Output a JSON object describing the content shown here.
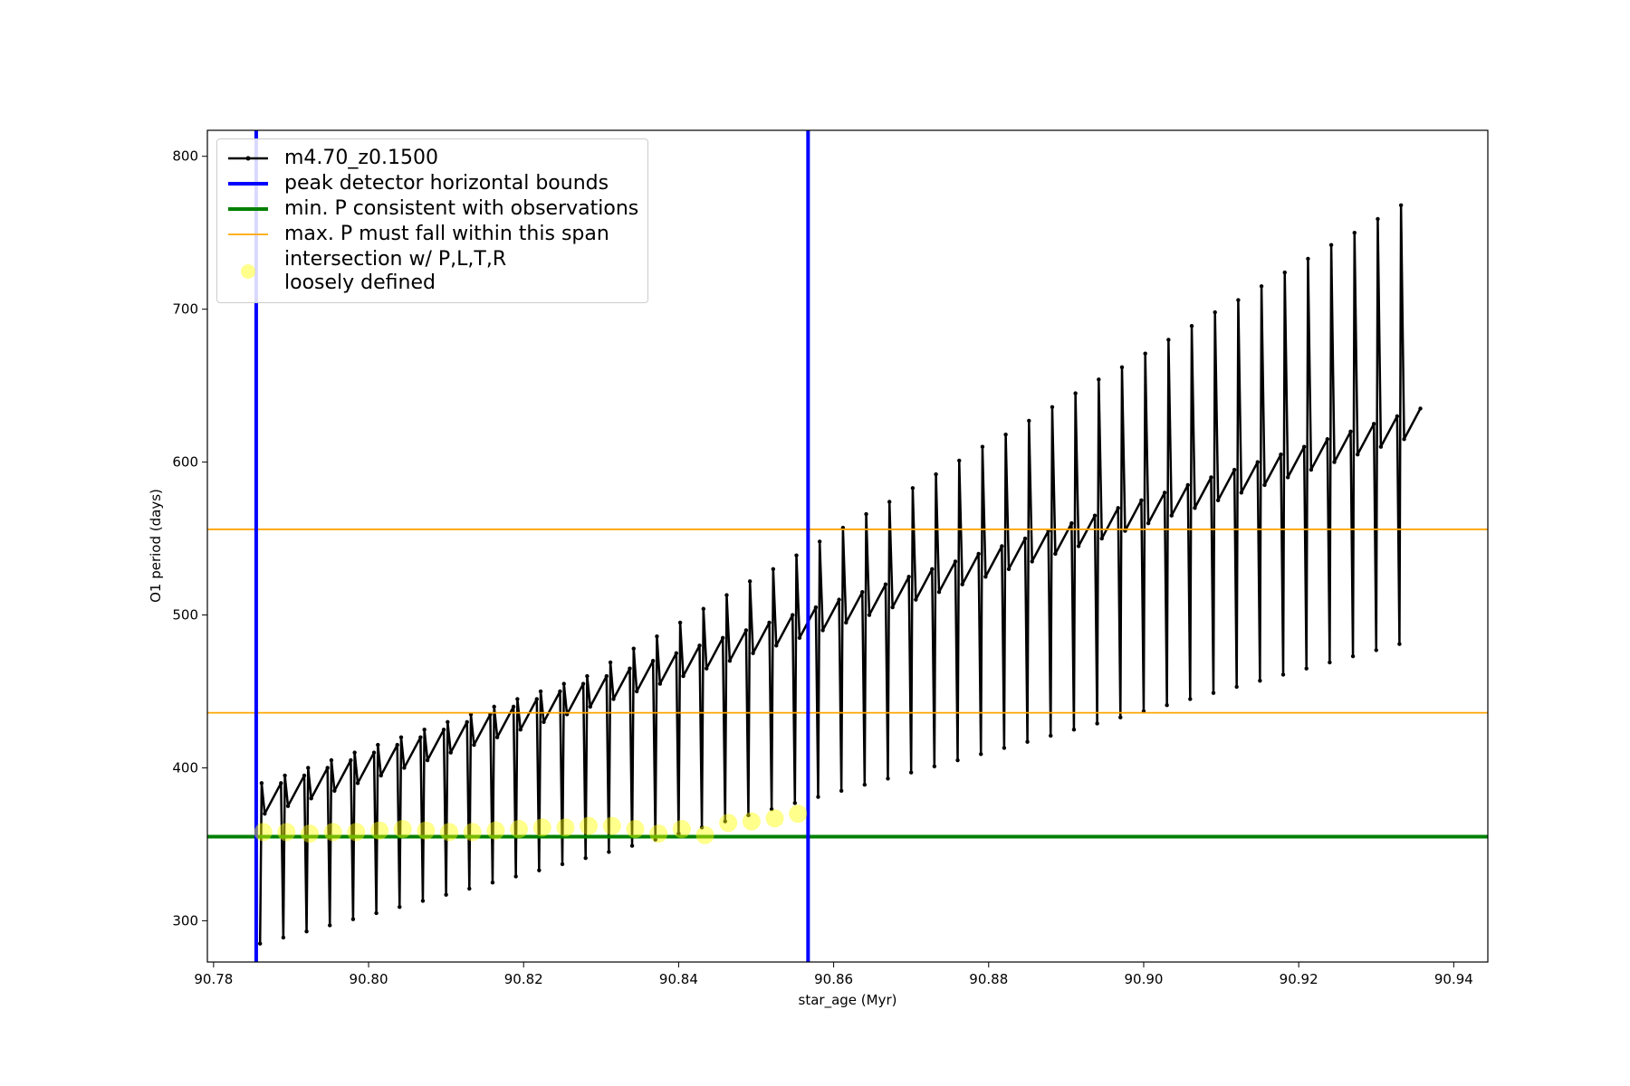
{
  "chart_data": {
    "type": "line",
    "xlabel": "star_age (Myr)",
    "ylabel": "O1 period (days)",
    "xlim": [
      90.7792,
      90.9444
    ],
    "ylim": [
      273,
      817
    ],
    "xticks": [
      90.78,
      {
        "value": 90.8,
        "label": "90.80"
      },
      90.82,
      90.84,
      90.86,
      90.88,
      {
        "value": 90.9,
        "label": "90.90"
      },
      90.92,
      90.94
    ],
    "yticks": [
      300,
      400,
      500,
      600,
      700,
      800
    ],
    "legend": "upper left",
    "series": [
      {
        "name": "m4.70_z0.1500",
        "kind": "line",
        "color": "#000000",
        "linewidth": 2.5,
        "x": [
          90.786,
          90.7862,
          90.7866,
          90.7887,
          90.789,
          90.7892,
          90.7896,
          90.7917,
          90.792,
          90.7922,
          90.7926,
          90.7947,
          90.795,
          90.7952,
          90.7956,
          90.7977,
          90.798,
          90.7982,
          90.7986,
          90.8007,
          90.801,
          90.8012,
          90.8016,
          90.8037,
          90.804,
          90.8042,
          90.8046,
          90.8067,
          90.807,
          90.8072,
          90.8076,
          90.8097,
          90.81,
          90.8102,
          90.8106,
          90.8127,
          90.813,
          90.8132,
          90.8136,
          90.8157,
          90.816,
          90.8162,
          90.8166,
          90.8187,
          90.819,
          90.8192,
          90.8196,
          90.8217,
          90.822,
          90.8222,
          90.8226,
          90.8247,
          90.825,
          90.8252,
          90.8256,
          90.8277,
          90.828,
          90.8282,
          90.8286,
          90.8307,
          90.831,
          90.8312,
          90.8316,
          90.8337,
          90.834,
          90.8342,
          90.8346,
          90.8367,
          90.837,
          90.8372,
          90.8376,
          90.8397,
          90.84,
          90.8402,
          90.8406,
          90.8427,
          90.843,
          90.8432,
          90.8436,
          90.8457,
          90.846,
          90.8462,
          90.8466,
          90.8487,
          90.849,
          90.8492,
          90.8496,
          90.8517,
          90.852,
          90.8522,
          90.8526,
          90.8547,
          90.855,
          90.8552,
          90.8556,
          90.8577,
          90.858,
          90.8582,
          90.8586,
          90.8607,
          90.861,
          90.8612,
          90.8616,
          90.8637,
          90.864,
          90.8642,
          90.8646,
          90.8667,
          90.867,
          90.8672,
          90.8676,
          90.8697,
          90.87,
          90.8702,
          90.8706,
          90.8727,
          90.873,
          90.8732,
          90.8736,
          90.8757,
          90.876,
          90.8762,
          90.8766,
          90.8787,
          90.879,
          90.8792,
          90.8796,
          90.8817,
          90.882,
          90.8822,
          90.8826,
          90.8847,
          90.885,
          90.8852,
          90.8856,
          90.8877,
          90.888,
          90.8882,
          90.8886,
          90.8907,
          90.891,
          90.8912,
          90.8916,
          90.8937,
          90.894,
          90.8942,
          90.8946,
          90.8967,
          90.897,
          90.8972,
          90.8976,
          90.8997,
          90.9,
          90.9002,
          90.9006,
          90.9027,
          90.903,
          90.9032,
          90.9036,
          90.9057,
          90.906,
          90.9062,
          90.9066,
          90.9087,
          90.909,
          90.9092,
          90.9096,
          90.9117,
          90.912,
          90.9122,
          90.9126,
          90.9147,
          90.915,
          90.9152,
          90.9156,
          90.9177,
          90.918,
          90.9182,
          90.9186,
          90.9207,
          90.921,
          90.9212,
          90.9216,
          90.9237,
          90.924,
          90.9242,
          90.9246,
          90.9267,
          90.927,
          90.9272,
          90.9276,
          90.9297,
          90.93,
          90.9302,
          90.9306,
          90.9327,
          90.933,
          90.9332,
          90.9336,
          90.9357
        ],
        "values": [
          285,
          390,
          370,
          390,
          289,
          395,
          375,
          395,
          293,
          400,
          380,
          400,
          297,
          405,
          385,
          405,
          301,
          410,
          390,
          410,
          305,
          415,
          395,
          415,
          309,
          420,
          400,
          420,
          313,
          425,
          405,
          425,
          317,
          430,
          410,
          430,
          321,
          435,
          415,
          435,
          325,
          440,
          420,
          440,
          329,
          445,
          425,
          445,
          333,
          450,
          430,
          450,
          337,
          455,
          435,
          455,
          341,
          460,
          440,
          460,
          345,
          469,
          445,
          465,
          349,
          478,
          450,
          470,
          353,
          486,
          455,
          475,
          357,
          495,
          460,
          480,
          361,
          504,
          465,
          485,
          365,
          513,
          470,
          490,
          369,
          522,
          475,
          495,
          373,
          530,
          480,
          500,
          377,
          539,
          485,
          505,
          381,
          548,
          490,
          510,
          385,
          557,
          495,
          515,
          389,
          566,
          500,
          520,
          393,
          574,
          505,
          525,
          397,
          583,
          510,
          530,
          401,
          592,
          515,
          535,
          405,
          601,
          520,
          540,
          409,
          610,
          525,
          545,
          413,
          618,
          530,
          550,
          417,
          627,
          535,
          555,
          421,
          636,
          540,
          560,
          425,
          645,
          545,
          565,
          429,
          654,
          550,
          570,
          433,
          662,
          555,
          575,
          437,
          671,
          560,
          580,
          441,
          680,
          565,
          585,
          445,
          689,
          570,
          590,
          449,
          698,
          575,
          595,
          453,
          706,
          580,
          600,
          457,
          715,
          585,
          605,
          461,
          724,
          590,
          610,
          465,
          733,
          595,
          615,
          469,
          742,
          600,
          620,
          473,
          750,
          605,
          625,
          477,
          759,
          610,
          630,
          481,
          768,
          615,
          635
        ]
      },
      {
        "name": "peak detector horizontal bounds",
        "kind": "vline",
        "color": "#0000ff",
        "linewidth": 4,
        "x": [
          90.7855,
          90.8567
        ]
      },
      {
        "name": "min. P consistent with observations",
        "kind": "hline",
        "color": "#008000",
        "linewidth": 4,
        "values": [
          355
        ]
      },
      {
        "name": "max. P must fall within this span",
        "kind": "hline",
        "color": "#ffa500",
        "linewidth": 1.8,
        "values": [
          556,
          436
        ]
      },
      {
        "name": "intersection w/ P,L,T,R\nloosely defined",
        "kind": "scatter",
        "color": "#ffff00",
        "x": [
          90.7864,
          90.7894,
          90.7924,
          90.7954,
          90.7984,
          90.8014,
          90.8044,
          90.8074,
          90.8104,
          90.8134,
          90.8164,
          90.8194,
          90.8224,
          90.8254,
          90.8284,
          90.8314,
          90.8344,
          90.8374,
          90.8404,
          90.8434,
          90.8464,
          90.8494,
          90.8524,
          90.8554
        ],
        "values": [
          358,
          358,
          357,
          358,
          358,
          359,
          360,
          359,
          358,
          358,
          359,
          360,
          361,
          361,
          362,
          362,
          360,
          357,
          360,
          356,
          364,
          365,
          367,
          370
        ]
      }
    ]
  }
}
